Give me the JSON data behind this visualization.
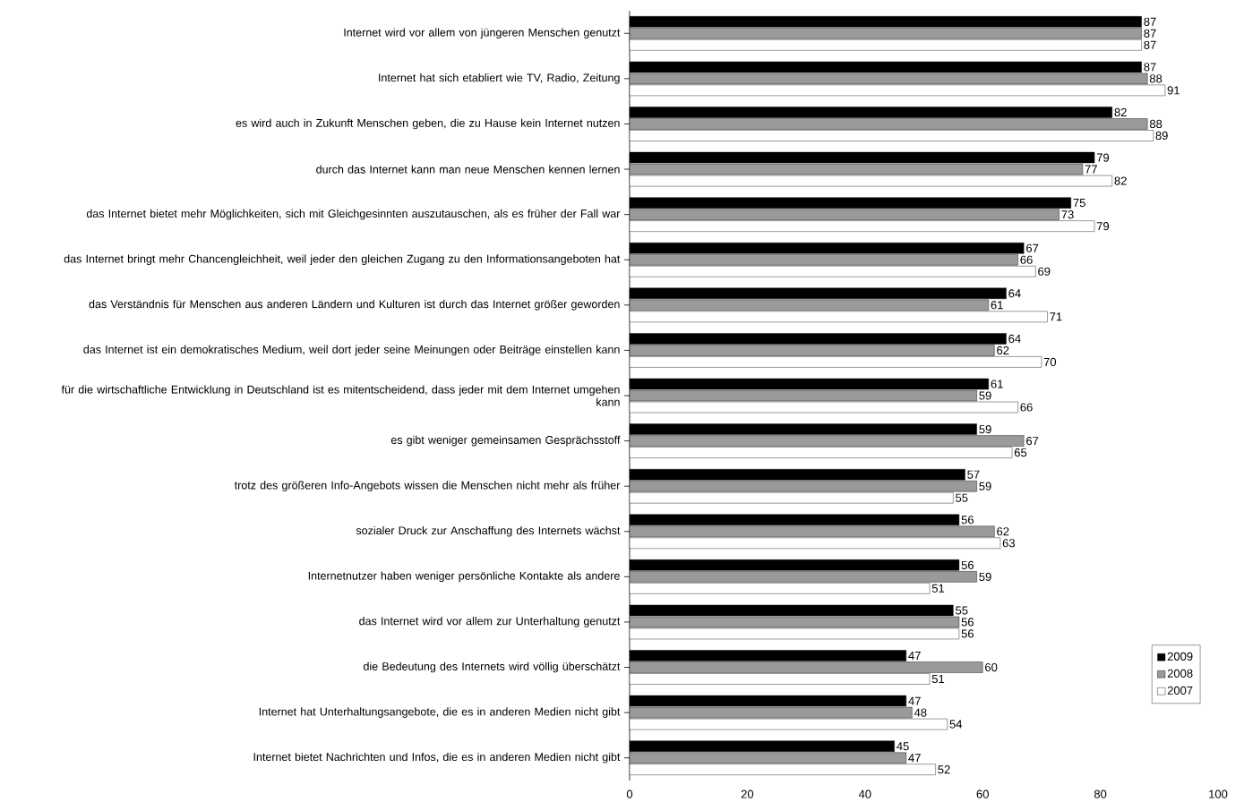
{
  "chart_data": {
    "type": "bar",
    "orientation": "horizontal",
    "categories": [
      "Internet wird vor allem von jüngeren Menschen genutzt",
      "Internet hat sich etabliert wie TV, Radio, Zeitung",
      "es wird auch in Zukunft Menschen geben, die zu Hause kein Internet nutzen",
      "durch das Internet kann man neue Menschen kennen lernen",
      "das Internet bietet mehr Möglichkeiten, sich mit Gleichgesinnten auszutauschen, als es früher der Fall war",
      "das Internet bringt mehr Chancengleichheit, weil jeder den gleichen Zugang zu den Informationsangeboten hat",
      "das Verständnis für Menschen aus anderen Ländern und Kulturen ist durch das Internet größer geworden",
      "das Internet ist ein demokratisches Medium, weil dort jeder seine Meinungen oder Beiträge einstellen kann",
      "für die wirtschaftliche Entwicklung in Deutschland ist es mitentscheidend, dass jeder mit dem Internet umgehen kann",
      "es gibt weniger gemeinsamen Gesprächsstoff",
      "trotz des größeren Info-Angebots wissen die Menschen nicht mehr als früher",
      "sozialer Druck zur Anschaffung des Internets wächst",
      "Internetnutzer haben weniger persönliche Kontakte als andere",
      "das Internet wird vor allem zur Unterhaltung genutzt",
      "die Bedeutung des Internets wird völlig überschätzt",
      "Internet hat Unterhaltungsangebote, die es in anderen Medien nicht gibt",
      "Internet bietet Nachrichten und Infos, die es in anderen Medien nicht gibt"
    ],
    "series": [
      {
        "name": "2009",
        "color": "#000000",
        "values": [
          87,
          87,
          82,
          79,
          75,
          67,
          64,
          64,
          61,
          59,
          57,
          56,
          56,
          55,
          47,
          47,
          45
        ]
      },
      {
        "name": "2008",
        "color": "#9a9a9a",
        "values": [
          87,
          88,
          88,
          77,
          73,
          66,
          61,
          62,
          59,
          67,
          59,
          62,
          59,
          56,
          60,
          48,
          47
        ]
      },
      {
        "name": "2007",
        "color": "#ffffff",
        "values": [
          87,
          91,
          89,
          82,
          79,
          69,
          71,
          70,
          66,
          65,
          55,
          63,
          51,
          56,
          51,
          54,
          52
        ]
      }
    ],
    "xlim": [
      0,
      100
    ],
    "xticks": [
      0,
      20,
      40,
      60,
      80,
      100
    ],
    "data_labels": true,
    "grid": false,
    "legend": "bottom right"
  }
}
